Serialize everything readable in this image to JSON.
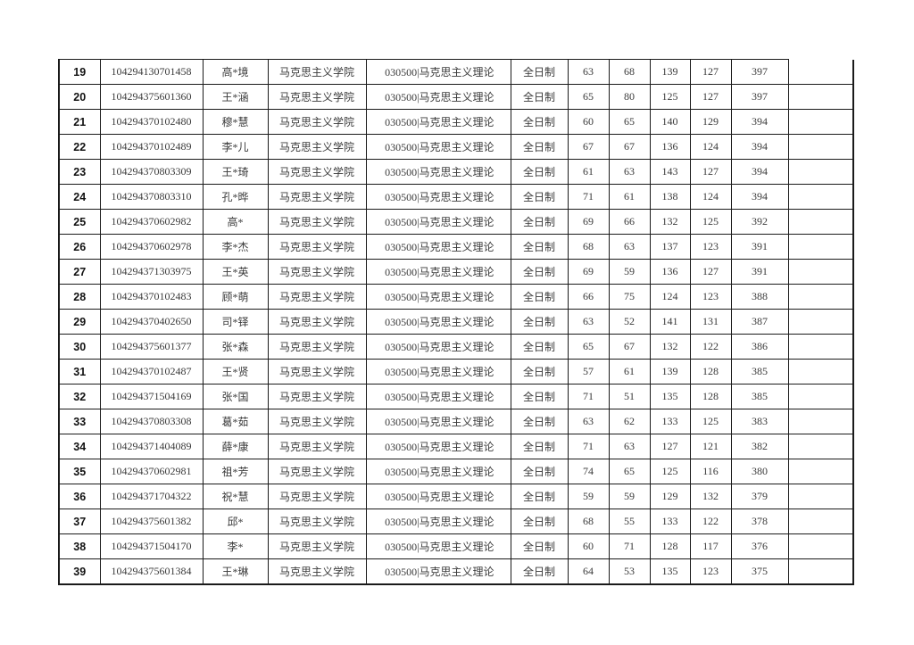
{
  "table": {
    "rows": [
      {
        "no": "19",
        "id": "104294130701458",
        "name": "高*境",
        "school": "马克思主义学院",
        "major": "030500|马克思主义理论",
        "mode": "全日制",
        "s1": "63",
        "s2": "68",
        "s3": "139",
        "s4": "127",
        "total": "397",
        "note": ""
      },
      {
        "no": "20",
        "id": "104294375601360",
        "name": "王*涵",
        "school": "马克思主义学院",
        "major": "030500|马克思主义理论",
        "mode": "全日制",
        "s1": "65",
        "s2": "80",
        "s3": "125",
        "s4": "127",
        "total": "397",
        "note": ""
      },
      {
        "no": "21",
        "id": "104294370102480",
        "name": "穆*慧",
        "school": "马克思主义学院",
        "major": "030500|马克思主义理论",
        "mode": "全日制",
        "s1": "60",
        "s2": "65",
        "s3": "140",
        "s4": "129",
        "total": "394",
        "note": ""
      },
      {
        "no": "22",
        "id": "104294370102489",
        "name": "李*儿",
        "school": "马克思主义学院",
        "major": "030500|马克思主义理论",
        "mode": "全日制",
        "s1": "67",
        "s2": "67",
        "s3": "136",
        "s4": "124",
        "total": "394",
        "note": ""
      },
      {
        "no": "23",
        "id": "104294370803309",
        "name": "王*琦",
        "school": "马克思主义学院",
        "major": "030500|马克思主义理论",
        "mode": "全日制",
        "s1": "61",
        "s2": "63",
        "s3": "143",
        "s4": "127",
        "total": "394",
        "note": ""
      },
      {
        "no": "24",
        "id": "104294370803310",
        "name": "孔*晔",
        "school": "马克思主义学院",
        "major": "030500|马克思主义理论",
        "mode": "全日制",
        "s1": "71",
        "s2": "61",
        "s3": "138",
        "s4": "124",
        "total": "394",
        "note": ""
      },
      {
        "no": "25",
        "id": "104294370602982",
        "name": "高*",
        "school": "马克思主义学院",
        "major": "030500|马克思主义理论",
        "mode": "全日制",
        "s1": "69",
        "s2": "66",
        "s3": "132",
        "s4": "125",
        "total": "392",
        "note": ""
      },
      {
        "no": "26",
        "id": "104294370602978",
        "name": "李*杰",
        "school": "马克思主义学院",
        "major": "030500|马克思主义理论",
        "mode": "全日制",
        "s1": "68",
        "s2": "63",
        "s3": "137",
        "s4": "123",
        "total": "391",
        "note": ""
      },
      {
        "no": "27",
        "id": "104294371303975",
        "name": "王*英",
        "school": "马克思主义学院",
        "major": "030500|马克思主义理论",
        "mode": "全日制",
        "s1": "69",
        "s2": "59",
        "s3": "136",
        "s4": "127",
        "total": "391",
        "note": ""
      },
      {
        "no": "28",
        "id": "104294370102483",
        "name": "顾*萌",
        "school": "马克思主义学院",
        "major": "030500|马克思主义理论",
        "mode": "全日制",
        "s1": "66",
        "s2": "75",
        "s3": "124",
        "s4": "123",
        "total": "388",
        "note": ""
      },
      {
        "no": "29",
        "id": "104294370402650",
        "name": "司*铎",
        "school": "马克思主义学院",
        "major": "030500|马克思主义理论",
        "mode": "全日制",
        "s1": "63",
        "s2": "52",
        "s3": "141",
        "s4": "131",
        "total": "387",
        "note": ""
      },
      {
        "no": "30",
        "id": "104294375601377",
        "name": "张*森",
        "school": "马克思主义学院",
        "major": "030500|马克思主义理论",
        "mode": "全日制",
        "s1": "65",
        "s2": "67",
        "s3": "132",
        "s4": "122",
        "total": "386",
        "note": ""
      },
      {
        "no": "31",
        "id": "104294370102487",
        "name": "王*贤",
        "school": "马克思主义学院",
        "major": "030500|马克思主义理论",
        "mode": "全日制",
        "s1": "57",
        "s2": "61",
        "s3": "139",
        "s4": "128",
        "total": "385",
        "note": ""
      },
      {
        "no": "32",
        "id": "104294371504169",
        "name": "张*国",
        "school": "马克思主义学院",
        "major": "030500|马克思主义理论",
        "mode": "全日制",
        "s1": "71",
        "s2": "51",
        "s3": "135",
        "s4": "128",
        "total": "385",
        "note": ""
      },
      {
        "no": "33",
        "id": "104294370803308",
        "name": "葛*茹",
        "school": "马克思主义学院",
        "major": "030500|马克思主义理论",
        "mode": "全日制",
        "s1": "63",
        "s2": "62",
        "s3": "133",
        "s4": "125",
        "total": "383",
        "note": ""
      },
      {
        "no": "34",
        "id": "104294371404089",
        "name": "薛*康",
        "school": "马克思主义学院",
        "major": "030500|马克思主义理论",
        "mode": "全日制",
        "s1": "71",
        "s2": "63",
        "s3": "127",
        "s4": "121",
        "total": "382",
        "note": ""
      },
      {
        "no": "35",
        "id": "104294370602981",
        "name": "祖*芳",
        "school": "马克思主义学院",
        "major": "030500|马克思主义理论",
        "mode": "全日制",
        "s1": "74",
        "s2": "65",
        "s3": "125",
        "s4": "116",
        "total": "380",
        "note": ""
      },
      {
        "no": "36",
        "id": "104294371704322",
        "name": "祝*慧",
        "school": "马克思主义学院",
        "major": "030500|马克思主义理论",
        "mode": "全日制",
        "s1": "59",
        "s2": "59",
        "s3": "129",
        "s4": "132",
        "total": "379",
        "note": ""
      },
      {
        "no": "37",
        "id": "104294375601382",
        "name": "邱*",
        "school": "马克思主义学院",
        "major": "030500|马克思主义理论",
        "mode": "全日制",
        "s1": "68",
        "s2": "55",
        "s3": "133",
        "s4": "122",
        "total": "378",
        "note": ""
      },
      {
        "no": "38",
        "id": "104294371504170",
        "name": "李*",
        "school": "马克思主义学院",
        "major": "030500|马克思主义理论",
        "mode": "全日制",
        "s1": "60",
        "s2": "71",
        "s3": "128",
        "s4": "117",
        "total": "376",
        "note": ""
      },
      {
        "no": "39",
        "id": "104294375601384",
        "name": "王*琳",
        "school": "马克思主义学院",
        "major": "030500|马克思主义理论",
        "mode": "全日制",
        "s1": "64",
        "s2": "53",
        "s3": "135",
        "s4": "123",
        "total": "375",
        "note": ""
      }
    ]
  }
}
